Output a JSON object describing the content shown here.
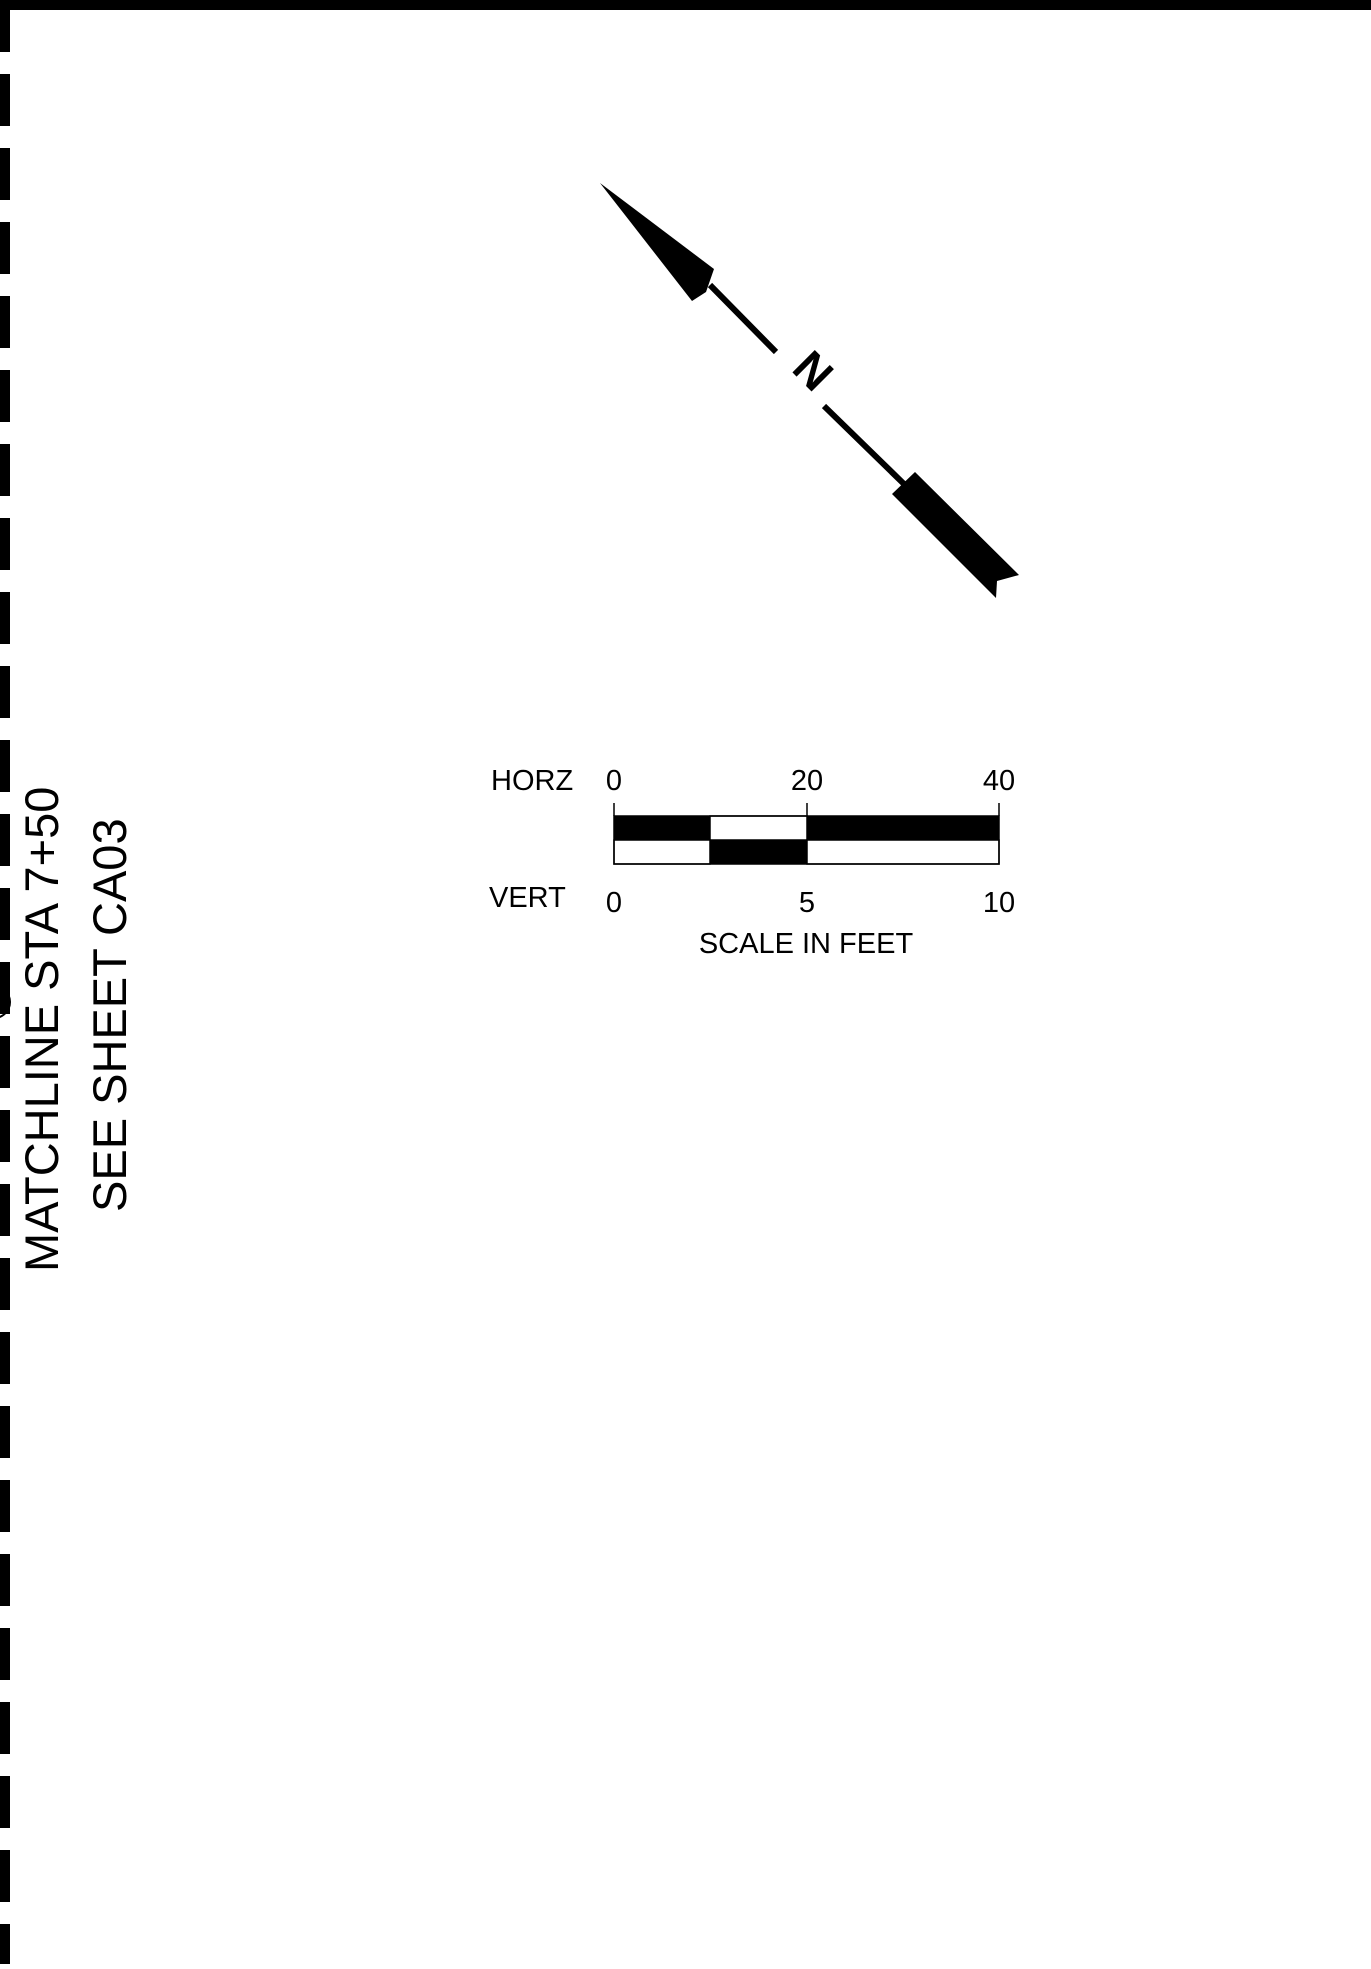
{
  "matchline": {
    "line1": "MATCHLINE STA 7+50",
    "line2": "SEE SHEET CA03"
  },
  "north_arrow": {
    "label": "N"
  },
  "scale_bar": {
    "horz_label": "HORZ",
    "horz_ticks": [
      "0",
      "20",
      "40"
    ],
    "vert_label": "VERT",
    "vert_ticks": [
      "0",
      "5",
      "10"
    ],
    "caption": "SCALE IN FEET"
  },
  "colors": {
    "ink": "#000000",
    "paper": "#ffffff"
  }
}
